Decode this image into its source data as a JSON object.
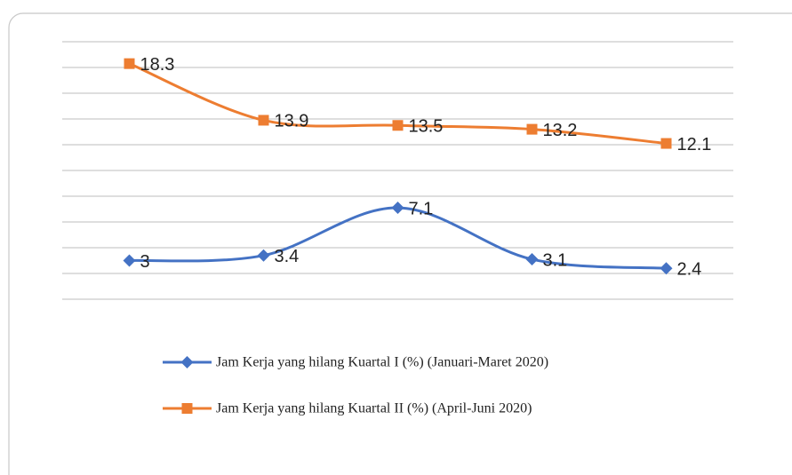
{
  "chart_data": {
    "type": "line",
    "categories": [
      null,
      null,
      null,
      null,
      null
    ],
    "series": [
      {
        "name": "Jam Kerja yang hilang Kuartal I (%) (Januari-Maret 2020)",
        "color": "#4472c4",
        "marker": "diamond",
        "values": [
          3,
          3.4,
          7.1,
          3.1,
          2.4
        ]
      },
      {
        "name": "Jam Kerja yang hilang Kuartal II (%) (April-Juni 2020)",
        "color": "#ed7d31",
        "marker": "square",
        "values": [
          18.3,
          13.9,
          13.5,
          13.2,
          12.1
        ]
      }
    ],
    "ylim": [
      0,
      20
    ],
    "yticks": [
      0,
      2,
      4,
      6,
      8,
      10,
      12,
      14,
      16,
      18,
      20
    ],
    "grid": true,
    "smooth": true,
    "legend": "bottom"
  }
}
